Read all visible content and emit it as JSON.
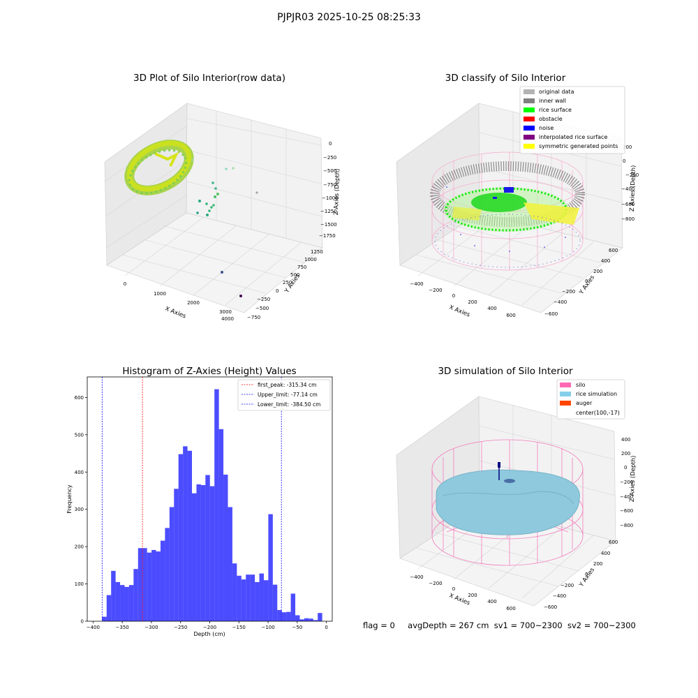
{
  "figure": {
    "suptitle": "PJPJR03 2025-10-25 08:25:33",
    "status": {
      "flag": "flag = 0",
      "avg_depth": "avgDepth = 267 cm",
      "sv1": "sv1 = 700~2300",
      "sv2": "sv2 = 700~2300"
    }
  },
  "chart_data": [
    {
      "type": "scatter",
      "title": "3D Plot of Silo Interior(row data)",
      "xlabel": "X Axies",
      "ylabel": "Y Axies",
      "zlabel": "Z Axies (Depth)",
      "x_ticks": [
        "0",
        "1000",
        "2000",
        "3000",
        "4000"
      ],
      "y_ticks": [
        "1250",
        "1000",
        "750",
        "500",
        "250",
        "0",
        "−250",
        "−500",
        "−750"
      ],
      "z_ticks": [
        "0",
        "−250",
        "−500",
        "−750",
        "−1000",
        "−1250",
        "−1500",
        "−1750"
      ],
      "colormap": "viridis (colored by depth)",
      "grid": true
    },
    {
      "type": "scatter",
      "title": "3D classify of Silo Interior",
      "xlabel": "X Axies",
      "ylabel": "Y Axies",
      "zlabel": "Z Axies (Depth)",
      "x_ticks": [
        "−400",
        "−200",
        "0",
        "200",
        "400",
        "600"
      ],
      "y_ticks": [
        "600",
        "400",
        "200",
        "0",
        "−200",
        "−400",
        "−600"
      ],
      "z_ticks": [
        "200",
        "0",
        "−200",
        "−400",
        "−600",
        "−800"
      ],
      "legend": [
        {
          "label": "original data",
          "color": "#b3b3b3"
        },
        {
          "label": "inner wall",
          "color": "#808080"
        },
        {
          "label": "rice surface",
          "color": "#00ff00"
        },
        {
          "label": "obstacle",
          "color": "#ff0000"
        },
        {
          "label": "noise",
          "color": "#0000ff"
        },
        {
          "label": "interpolated rice surface",
          "color": "#800080"
        },
        {
          "label": "symmetric generated points",
          "color": "#ffff00"
        }
      ],
      "legend_loc": "upper right",
      "grid": true
    },
    {
      "type": "bar",
      "title": "Histogram of Z-Axies (Height) Values",
      "xlabel": "Depth (cm)",
      "ylabel": "Frequency",
      "xlim": [
        -410,
        10
      ],
      "ylim": [
        0,
        655
      ],
      "x_ticks": [
        -400,
        -350,
        -300,
        -250,
        -200,
        -150,
        -100,
        -50,
        0
      ],
      "y_ticks": [
        0,
        100,
        200,
        300,
        400,
        500,
        600
      ],
      "bar_color": "#0000ff",
      "bin_start": -384.5,
      "bin_width": 7.7,
      "values": [
        12,
        70,
        135,
        105,
        97,
        92,
        97,
        140,
        196,
        196,
        184,
        191,
        187,
        216,
        250,
        306,
        355,
        448,
        469,
        457,
        343,
        367,
        365,
        392,
        362,
        622,
        515,
        393,
        306,
        155,
        122,
        112,
        125,
        125,
        105,
        128,
        110,
        287,
        98,
        30,
        24,
        25,
        74,
        16,
        5,
        8,
        7,
        3,
        22
      ],
      "vlines": [
        {
          "x": -315.34,
          "color": "#ff0000",
          "label": "first_peak: -315.34 cm"
        },
        {
          "x": -77.14,
          "color": "#0000ff",
          "label": "Upper_limit: -77.14 cm"
        },
        {
          "x": -384.5,
          "color": "#0000ff",
          "label": "Lower_limit: -384.50 cm"
        }
      ],
      "legend_loc": "upper right"
    },
    {
      "type": "surface",
      "title": "3D simulation of Silo Interior",
      "xlabel": "X Axies",
      "ylabel": "Y Axies",
      "zlabel": "Z Axies (Depth)",
      "x_ticks": [
        "−400",
        "−200",
        "0",
        "200",
        "400",
        "600"
      ],
      "y_ticks": [
        "600",
        "400",
        "200",
        "0",
        "−200",
        "−400",
        "−600"
      ],
      "z_ticks": [
        "400",
        "200",
        "0",
        "−200",
        "−400",
        "−600",
        "−800"
      ],
      "legend": [
        {
          "label": "silo",
          "color": "#ff69b4"
        },
        {
          "label": "rice simulation",
          "color": "#87ceeb"
        },
        {
          "label": "auger",
          "color": "#ff4500"
        },
        {
          "label": "center(100,-17)",
          "color": ""
        }
      ],
      "legend_loc": "upper right",
      "grid": true
    }
  ]
}
